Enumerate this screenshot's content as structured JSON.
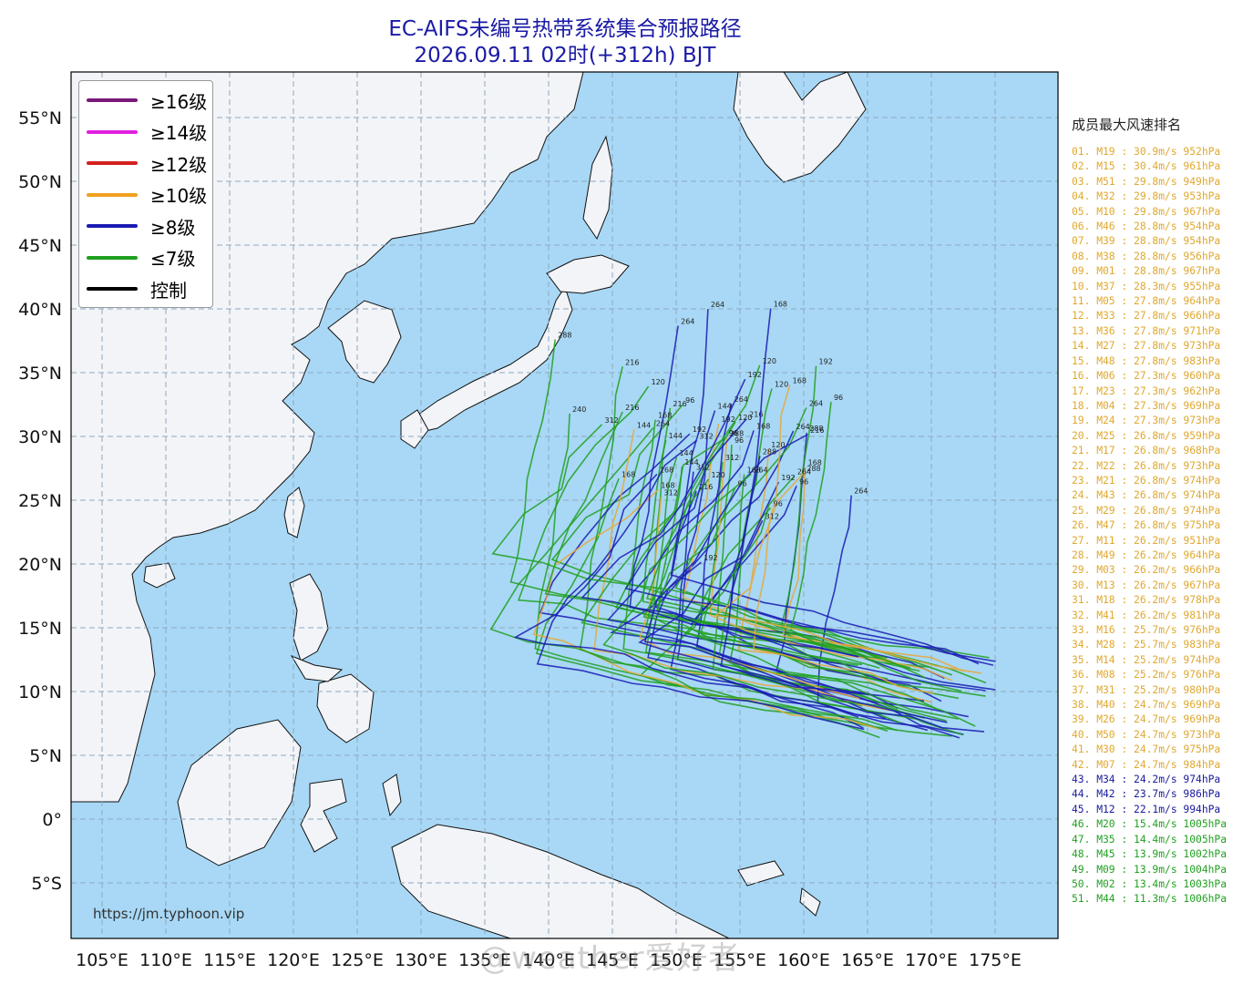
{
  "title": {
    "line1": "EC-AIFS未编号热带系统集合预报路径",
    "line2": "2026.09.11 02时(+312h) BJT"
  },
  "map": {
    "ocean_color": "#a8d8f5",
    "land_color": "#f2f4f8",
    "lat_labels": [
      "55°N",
      "50°N",
      "45°N",
      "40°N",
      "35°N",
      "30°N",
      "25°N",
      "20°N",
      "15°N",
      "10°N",
      "5°N",
      "0°",
      "5°S"
    ],
    "lon_labels": [
      "105°E",
      "110°E",
      "115°E",
      "120°E",
      "125°E",
      "130°E",
      "135°E",
      "140°E",
      "145°E",
      "150°E",
      "155°E",
      "160°E",
      "165°E",
      "170°E",
      "175°E"
    ],
    "url": "https://jm.typhoon.vip"
  },
  "legend": [
    {
      "label": "≥16级",
      "color": "#7a1a7a"
    },
    {
      "label": "≥14级",
      "color": "#e020e0"
    },
    {
      "label": "≥12级",
      "color": "#d42020"
    },
    {
      "label": "≥10级",
      "color": "#f0a020"
    },
    {
      "label": "≥8级",
      "color": "#1a1ab4"
    },
    {
      "label": "≤7级",
      "color": "#20a020"
    },
    {
      "label": "控制",
      "color": "#000000"
    }
  ],
  "ranking": {
    "title": "成员最大风速排名",
    "items": [
      {
        "text": "01. M19 : 30.9m/s 952hPa",
        "color": "#e0a830"
      },
      {
        "text": "02. M15 : 30.4m/s 961hPa",
        "color": "#e0a830"
      },
      {
        "text": "03. M51 : 29.8m/s 949hPa",
        "color": "#e0a830"
      },
      {
        "text": "04. M32 : 29.8m/s 953hPa",
        "color": "#e0a830"
      },
      {
        "text": "05. M10 : 29.8m/s 967hPa",
        "color": "#e0a830"
      },
      {
        "text": "06. M46 : 28.8m/s 954hPa",
        "color": "#e0a830"
      },
      {
        "text": "07. M39 : 28.8m/s 954hPa",
        "color": "#e0a830"
      },
      {
        "text": "08. M38 : 28.8m/s 956hPa",
        "color": "#e0a830"
      },
      {
        "text": "09. M01 : 28.8m/s 967hPa",
        "color": "#e0a830"
      },
      {
        "text": "10. M37 : 28.3m/s 955hPa",
        "color": "#e0a830"
      },
      {
        "text": "11. M05 : 27.8m/s 964hPa",
        "color": "#e0a830"
      },
      {
        "text": "12. M33 : 27.8m/s 966hPa",
        "color": "#e0a830"
      },
      {
        "text": "13. M36 : 27.8m/s 971hPa",
        "color": "#e0a830"
      },
      {
        "text": "14. M27 : 27.8m/s 973hPa",
        "color": "#e0a830"
      },
      {
        "text": "15. M48 : 27.8m/s 983hPa",
        "color": "#e0a830"
      },
      {
        "text": "16. M06 : 27.3m/s 960hPa",
        "color": "#e0a830"
      },
      {
        "text": "17. M23 : 27.3m/s 962hPa",
        "color": "#e0a830"
      },
      {
        "text": "18. M04 : 27.3m/s 969hPa",
        "color": "#e0a830"
      },
      {
        "text": "19. M24 : 27.3m/s 973hPa",
        "color": "#e0a830"
      },
      {
        "text": "20. M25 : 26.8m/s 959hPa",
        "color": "#e0a830"
      },
      {
        "text": "21. M17 : 26.8m/s 968hPa",
        "color": "#e0a830"
      },
      {
        "text": "22. M22 : 26.8m/s 973hPa",
        "color": "#e0a830"
      },
      {
        "text": "23. M21 : 26.8m/s 974hPa",
        "color": "#e0a830"
      },
      {
        "text": "24. M43 : 26.8m/s 974hPa",
        "color": "#e0a830"
      },
      {
        "text": "25. M29 : 26.8m/s 974hPa",
        "color": "#e0a830"
      },
      {
        "text": "26. M47 : 26.8m/s 975hPa",
        "color": "#e0a830"
      },
      {
        "text": "27. M11 : 26.2m/s 951hPa",
        "color": "#e0a830"
      },
      {
        "text": "28. M49 : 26.2m/s 964hPa",
        "color": "#e0a830"
      },
      {
        "text": "29. M03 : 26.2m/s 966hPa",
        "color": "#e0a830"
      },
      {
        "text": "30. M13 : 26.2m/s 967hPa",
        "color": "#e0a830"
      },
      {
        "text": "31. M18 : 26.2m/s 978hPa",
        "color": "#e0a830"
      },
      {
        "text": "32. M41 : 26.2m/s 981hPa",
        "color": "#e0a830"
      },
      {
        "text": "33. M16 : 25.7m/s 976hPa",
        "color": "#e0a830"
      },
      {
        "text": "34. M28 : 25.7m/s 983hPa",
        "color": "#e0a830"
      },
      {
        "text": "35. M14 : 25.2m/s 974hPa",
        "color": "#e0a830"
      },
      {
        "text": "36. M08 : 25.2m/s 976hPa",
        "color": "#e0a830"
      },
      {
        "text": "37. M31 : 25.2m/s 980hPa",
        "color": "#e0a830"
      },
      {
        "text": "38. M40 : 24.7m/s 969hPa",
        "color": "#e0a830"
      },
      {
        "text": "39. M26 : 24.7m/s 969hPa",
        "color": "#e0a830"
      },
      {
        "text": "40. M50 : 24.7m/s 973hPa",
        "color": "#e0a830"
      },
      {
        "text": "41. M30 : 24.7m/s 975hPa",
        "color": "#e0a830"
      },
      {
        "text": "42. M07 : 24.7m/s 984hPa",
        "color": "#e0a830"
      },
      {
        "text": "43. M34 : 24.2m/s 974hPa",
        "color": "#1a1a9c"
      },
      {
        "text": "44. M42 : 23.7m/s 986hPa",
        "color": "#1a1a9c"
      },
      {
        "text": "45. M12 : 22.1m/s 994hPa",
        "color": "#1a1a9c"
      },
      {
        "text": "46. M20 : 15.4m/s 1005hPa",
        "color": "#22a022"
      },
      {
        "text": "47. M35 : 14.4m/s 1005hPa",
        "color": "#22a022"
      },
      {
        "text": "48. M45 : 13.9m/s 1002hPa",
        "color": "#22a022"
      },
      {
        "text": "49. M09 : 13.9m/s 1004hPa",
        "color": "#22a022"
      },
      {
        "text": "50. M02 : 13.4m/s 1003hPa",
        "color": "#22a022"
      },
      {
        "text": "51. M44 : 11.3m/s 1006hPa",
        "color": "#22a022"
      }
    ]
  },
  "watermark": "@weather爱好者"
}
